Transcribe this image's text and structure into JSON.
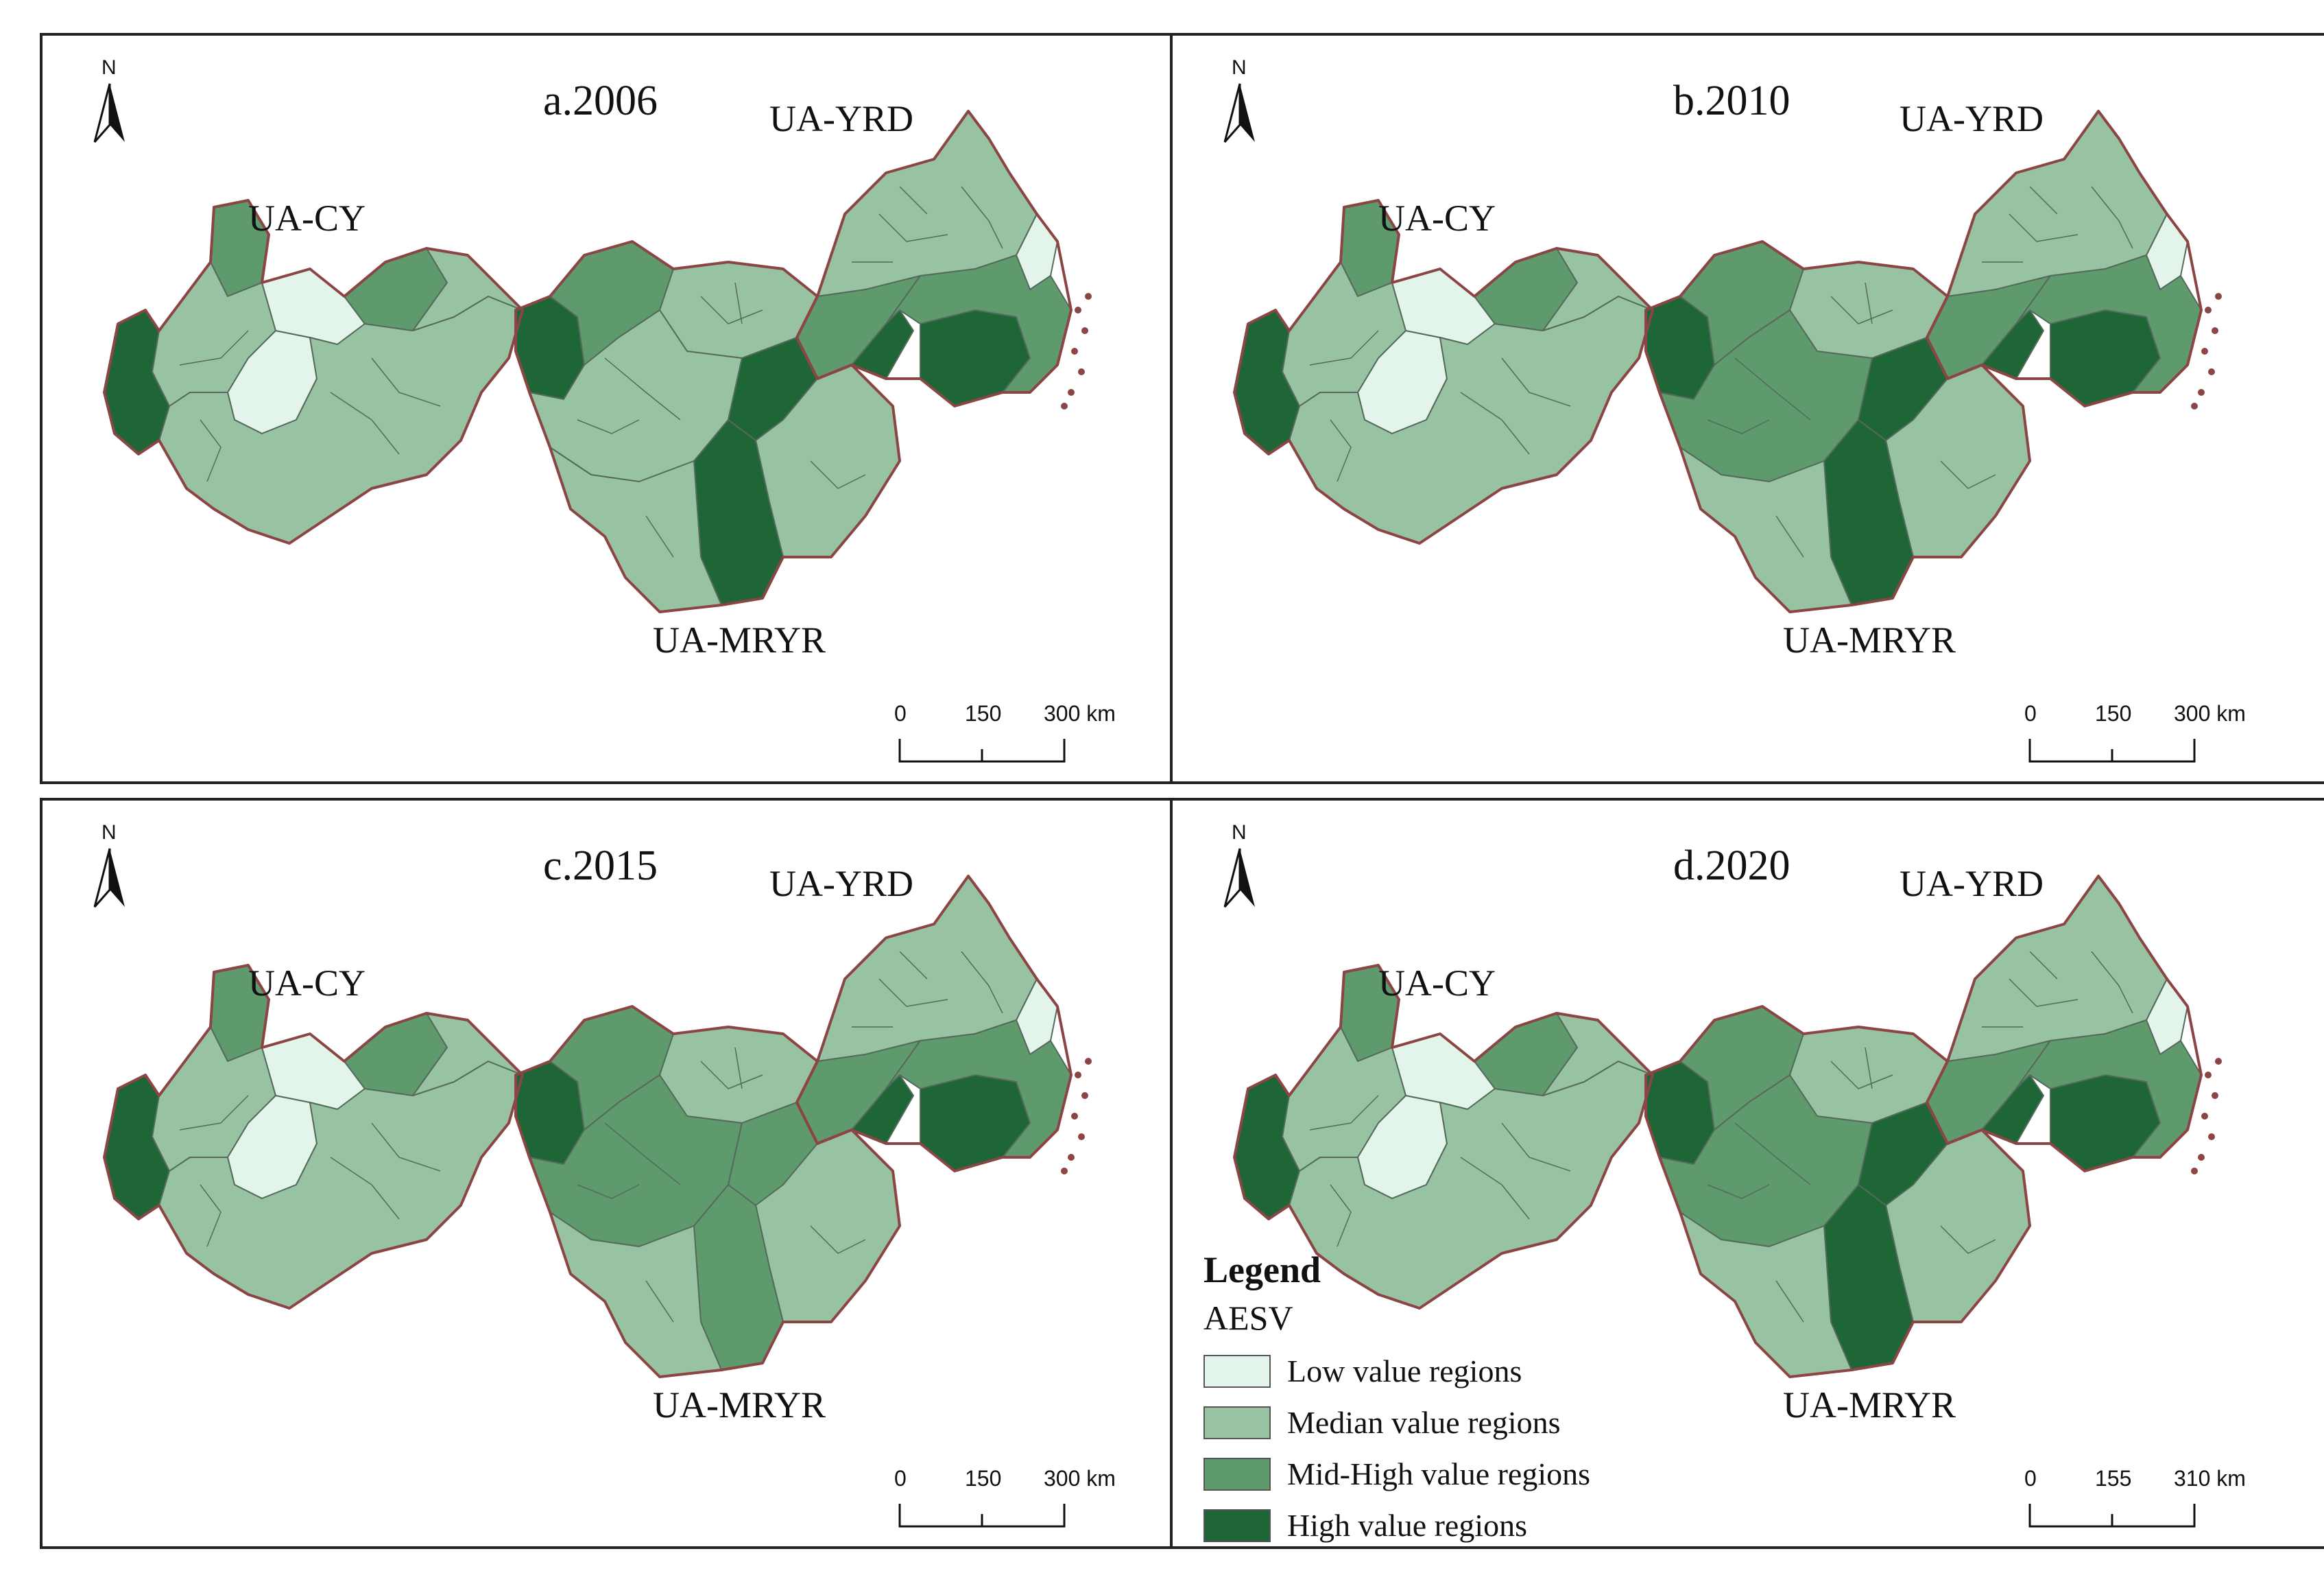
{
  "colors": {
    "low": "#e3f4ea",
    "median": "#98c3a3",
    "midhigh": "#5f9a6d",
    "high": "#1f6637",
    "boundary": "#8b4545",
    "inner_line": "#556a5c"
  },
  "region_labels": {
    "cy": "UA-CY",
    "yrd": "UA-YRD",
    "mryr": "UA-MRYR"
  },
  "panels": [
    {
      "title": "a.2006",
      "scale": {
        "t0": "0",
        "t1": "150",
        "t2": "300 km"
      },
      "classes": {
        "cy": [
          "high",
          "midhigh",
          "median",
          "low",
          "low",
          "median",
          "midhigh"
        ],
        "mryr": [
          "high",
          "midhigh",
          "median",
          "median",
          "high",
          "median",
          "high",
          "median"
        ],
        "yrd": [
          "median",
          "midhigh",
          "high",
          "high",
          "low",
          "midhigh"
        ]
      }
    },
    {
      "title": "b.2010",
      "scale": {
        "t0": "0",
        "t1": "150",
        "t2": "300 km"
      },
      "classes": {
        "cy": [
          "high",
          "midhigh",
          "median",
          "low",
          "low",
          "median",
          "midhigh"
        ],
        "mryr": [
          "high",
          "midhigh",
          "median",
          "midhigh",
          "high",
          "median",
          "high",
          "median"
        ],
        "yrd": [
          "median",
          "midhigh",
          "high",
          "high",
          "low",
          "midhigh"
        ]
      }
    },
    {
      "title": "c.2015",
      "scale": {
        "t0": "0",
        "t1": "150",
        "t2": "300 km"
      },
      "classes": {
        "cy": [
          "high",
          "midhigh",
          "median",
          "low",
          "low",
          "median",
          "midhigh"
        ],
        "mryr": [
          "high",
          "midhigh",
          "median",
          "midhigh",
          "midhigh",
          "median",
          "midhigh",
          "median"
        ],
        "yrd": [
          "median",
          "midhigh",
          "high",
          "high",
          "low",
          "midhigh"
        ]
      }
    },
    {
      "title": "d.2020",
      "scale": {
        "t0": "0",
        "t1": "155",
        "t2": "310 km"
      },
      "classes": {
        "cy": [
          "high",
          "midhigh",
          "median",
          "low",
          "low",
          "median",
          "midhigh"
        ],
        "mryr": [
          "high",
          "midhigh",
          "median",
          "midhigh",
          "high",
          "median",
          "high",
          "median"
        ],
        "yrd": [
          "median",
          "midhigh",
          "high",
          "high",
          "low",
          "midhigh"
        ]
      }
    }
  ],
  "legend": {
    "title": "Legend",
    "subtitle": "AESV",
    "items": [
      {
        "label": "Low value regions",
        "class": "low"
      },
      {
        "label": "Median value regions",
        "class": "median"
      },
      {
        "label": "Mid-High value regions",
        "class": "midhigh"
      },
      {
        "label": "High value regions",
        "class": "high"
      }
    ]
  }
}
